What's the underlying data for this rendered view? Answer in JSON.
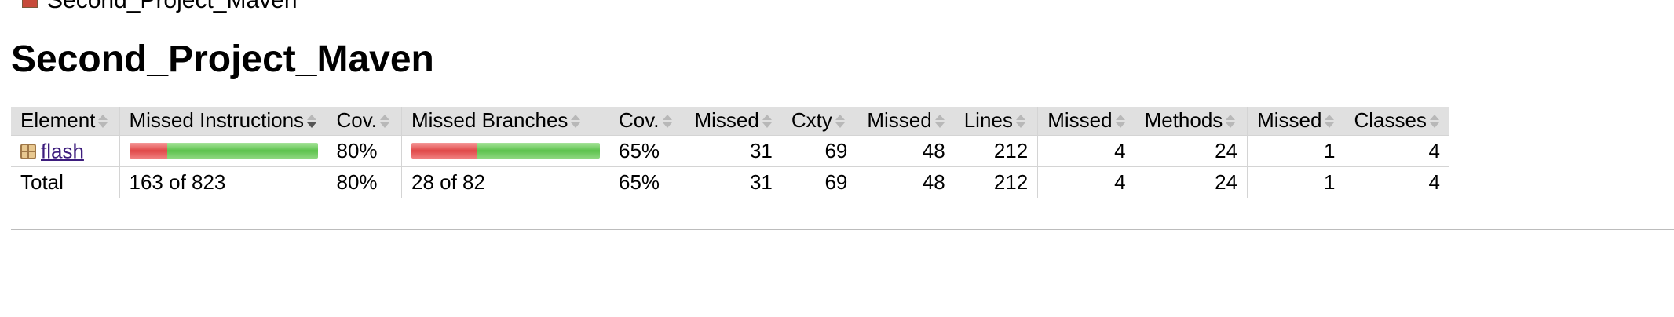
{
  "breadcrumb": {
    "label": "Second_Project_Maven",
    "icon": "session-icon"
  },
  "page": {
    "title": "Second_Project_Maven"
  },
  "table": {
    "headers": {
      "element": "Element",
      "missed_instructions": "Missed Instructions",
      "instr_cov": "Cov.",
      "missed_branches": "Missed Branches",
      "branch_cov": "Cov.",
      "missed_cxty": "Missed",
      "cxty": "Cxty",
      "missed_lines": "Missed",
      "lines": "Lines",
      "missed_methods": "Missed",
      "methods": "Methods",
      "missed_classes": "Missed",
      "classes": "Classes"
    },
    "sorted_column": "missed_instructions",
    "sort_direction": "descending",
    "rows": [
      {
        "element": "flash",
        "element_icon": "package-icon",
        "instructions_missed_fraction": 0.2,
        "instr_cov": "80%",
        "branches_missed_fraction": 0.35,
        "branch_cov": "65%",
        "missed_cxty": "31",
        "cxty": "69",
        "missed_lines": "48",
        "lines": "212",
        "missed_methods": "4",
        "methods": "24",
        "missed_classes": "1",
        "classes": "4"
      }
    ],
    "total": {
      "label": "Total",
      "missed_instructions": "163 of 823",
      "instr_cov": "80%",
      "missed_branches": "28 of 82",
      "branch_cov": "65%",
      "missed_cxty": "31",
      "cxty": "69",
      "missed_lines": "48",
      "lines": "212",
      "missed_methods": "4",
      "methods": "24",
      "missed_classes": "1",
      "classes": "4"
    }
  },
  "colors": {
    "missed": "#e04848",
    "covered": "#5cc24c",
    "header_bg": "#e0e0e0",
    "link": "#3d1d7d"
  }
}
